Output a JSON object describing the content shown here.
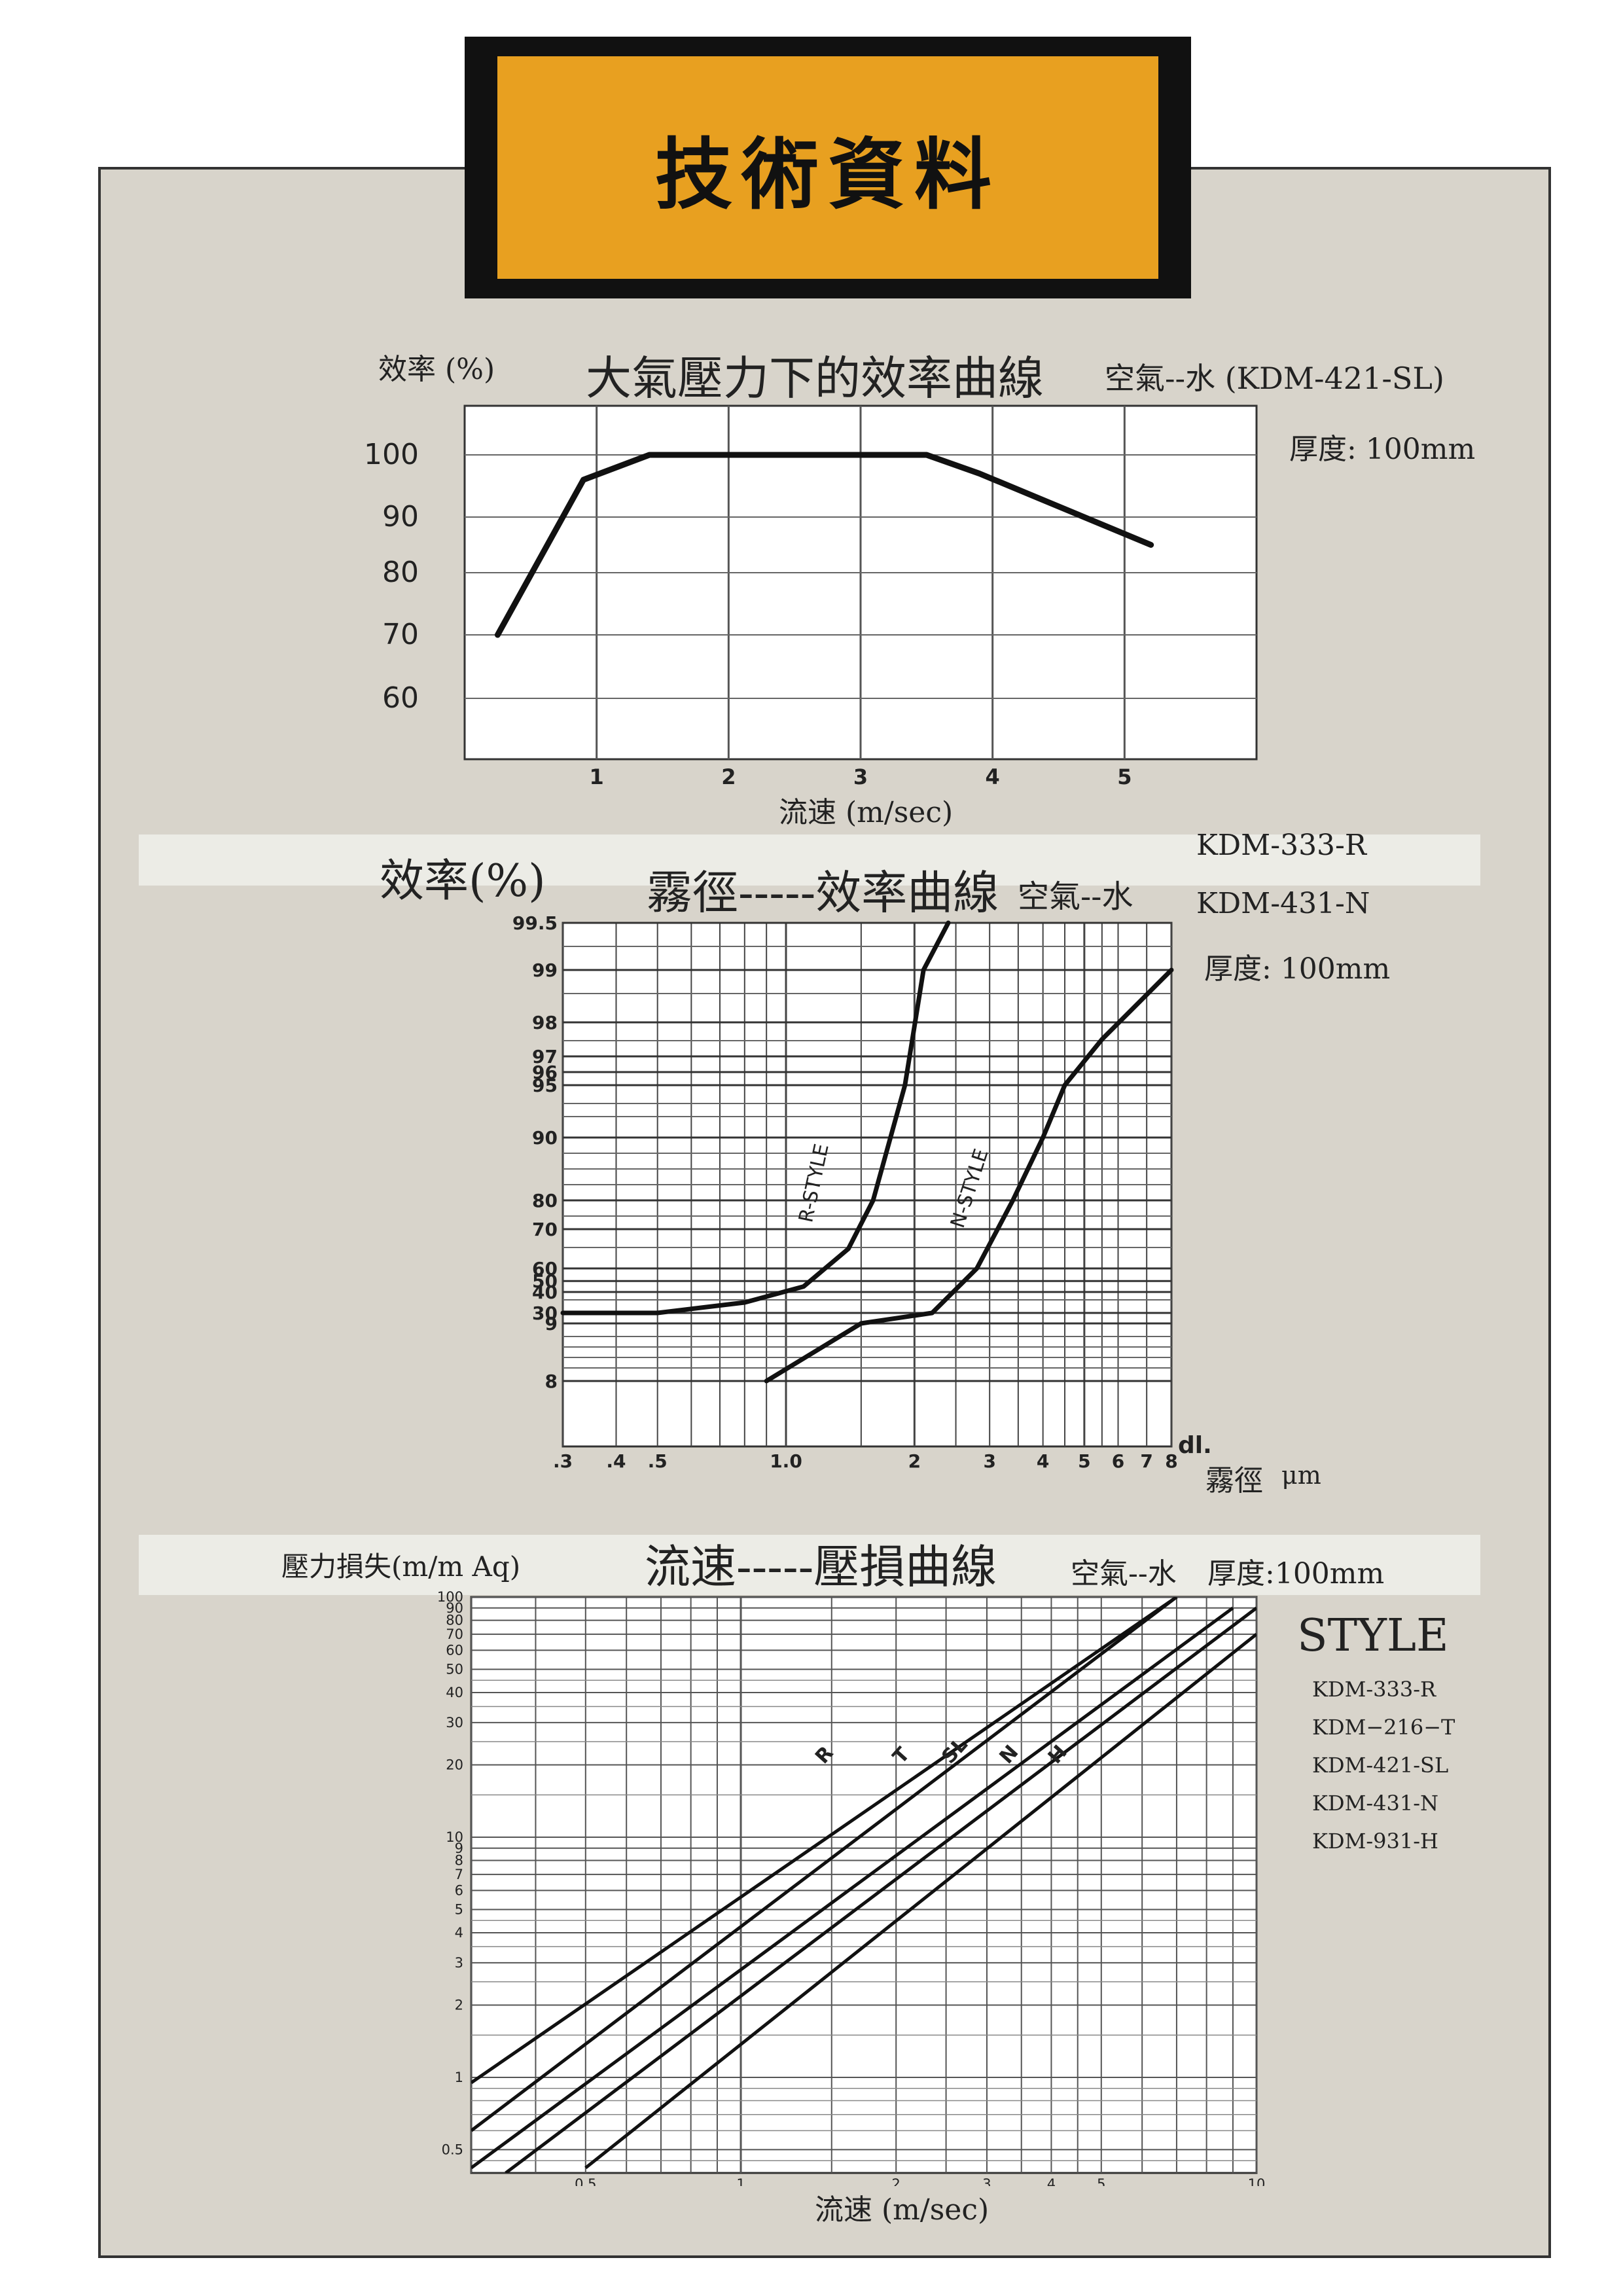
{
  "banner": {
    "title": "技術資料"
  },
  "colors": {
    "page_bg": "#d8d4cb",
    "banner_bg": "#e8a020",
    "plot_bg": "#ffffff",
    "ink": "#111111"
  },
  "chart1": {
    "ylabel": "效率 (%)",
    "title": "大氣壓力下的效率曲線",
    "subtitle": "空氣--水 (KDM-421-SL)",
    "thickness": "厚度: 100mm",
    "xlabel": "流速 (m/sec)",
    "ytick_labels": [
      "100",
      "90",
      "80",
      "70",
      "60"
    ],
    "xtick_labels": [
      "1",
      "2",
      "3",
      "4",
      "5"
    ]
  },
  "chart2": {
    "ylabel": "效率(%)",
    "title": "霧徑-----效率曲線",
    "subtitle": "空氣--水",
    "models": [
      "KDM-333-R",
      "KDM-431-N"
    ],
    "thickness": "厚度: 100mm",
    "xlabel": "霧徑",
    "xunit": "μm",
    "x_axis_end": "dl.",
    "ytick_labels": [
      "99.5",
      "99",
      "98",
      "97",
      "96",
      "95",
      "90",
      "80",
      "70",
      "60",
      "50",
      "40",
      "30",
      "9",
      "8"
    ],
    "xtick_labels": [
      ".3",
      ".4",
      ".5",
      "1.0",
      "2",
      "3",
      "4",
      "5",
      "6",
      "7",
      "8"
    ],
    "curve_labels": [
      "R-STYLE",
      "N-STYLE"
    ]
  },
  "chart3": {
    "ylabel": "壓力損失(m/m Aq)",
    "title": "流速-----壓損曲線",
    "subtitle": "空氣--水",
    "thickness": "厚度:100mm",
    "xlabel": "流速 (m/sec)",
    "ytick_labels": [
      "100",
      "90",
      "80",
      "70",
      "60",
      "50",
      "40",
      "30",
      "20",
      "10",
      "9",
      "8",
      "7",
      "6",
      "5",
      "4",
      "3",
      "2",
      "1",
      "0.5"
    ],
    "xtick_labels": [
      "0.5",
      "1",
      "2",
      "3",
      "4",
      "5",
      "10"
    ],
    "style_heading": "STYLE",
    "styles": [
      "KDM-333-R",
      "KDM−216−T",
      "KDM-421-SL",
      "KDM-431-N",
      "KDM-931-H"
    ],
    "line_labels": [
      "R",
      "T",
      "SL",
      "N",
      "H"
    ]
  },
  "chart_data": [
    {
      "type": "line",
      "title": "大氣壓力下的效率曲線",
      "xlabel": "流速 (m/sec)",
      "ylabel": "效率 (%)",
      "xlim": [
        0,
        6
      ],
      "grid": true,
      "series": [
        {
          "x": [
            0.25,
            0.9,
            1.4,
            2.0,
            3.0,
            3.5,
            3.9,
            5.2
          ],
          "y": [
            70,
            96,
            100,
            100,
            100,
            100,
            97,
            85
          ]
        }
      ]
    },
    {
      "type": "line",
      "title": "霧徑-----效率曲線",
      "xlabel": "霧徑",
      "ylabel": "效率(%)",
      "xscale": "log",
      "xlim": [
        0.3,
        8
      ],
      "yscale": "probability",
      "grid": true,
      "series": [
        {
          "name": "R-STYLE",
          "x": [
            0.3,
            0.5,
            0.8,
            1.1,
            1.4,
            1.6,
            1.9,
            2.1,
            2.4
          ],
          "y": [
            30,
            30,
            35,
            45,
            65,
            80,
            95,
            99,
            99.5
          ]
        },
        {
          "name": "N-STYLE",
          "x": [
            0.9,
            1.5,
            2.2,
            2.8,
            3.4,
            4.0,
            4.5,
            5.5,
            8.0
          ],
          "y": [
            8,
            9,
            30,
            60,
            80,
            90,
            95,
            97.5,
            99
          ]
        }
      ]
    },
    {
      "type": "line",
      "title": "流速-----壓損曲線",
      "xlabel": "流速 (m/sec)",
      "ylabel": "壓力損失(m/m Aq)",
      "xscale": "log",
      "yscale": "log",
      "xlim": [
        0.3,
        10
      ],
      "ylim": [
        0.4,
        100
      ],
      "grid": true,
      "series": [
        {
          "name": "R",
          "x": [
            0.3,
            7.0
          ],
          "y": [
            0.95,
            100
          ]
        },
        {
          "name": "T",
          "x": [
            0.3,
            7.0
          ],
          "y": [
            0.6,
            100
          ]
        },
        {
          "name": "SL",
          "x": [
            0.3,
            9.0
          ],
          "y": [
            0.42,
            90
          ]
        },
        {
          "name": "N",
          "x": [
            0.35,
            10.0
          ],
          "y": [
            0.4,
            90
          ]
        },
        {
          "name": "H",
          "x": [
            0.5,
            10.0
          ],
          "y": [
            0.42,
            70
          ]
        }
      ]
    }
  ]
}
